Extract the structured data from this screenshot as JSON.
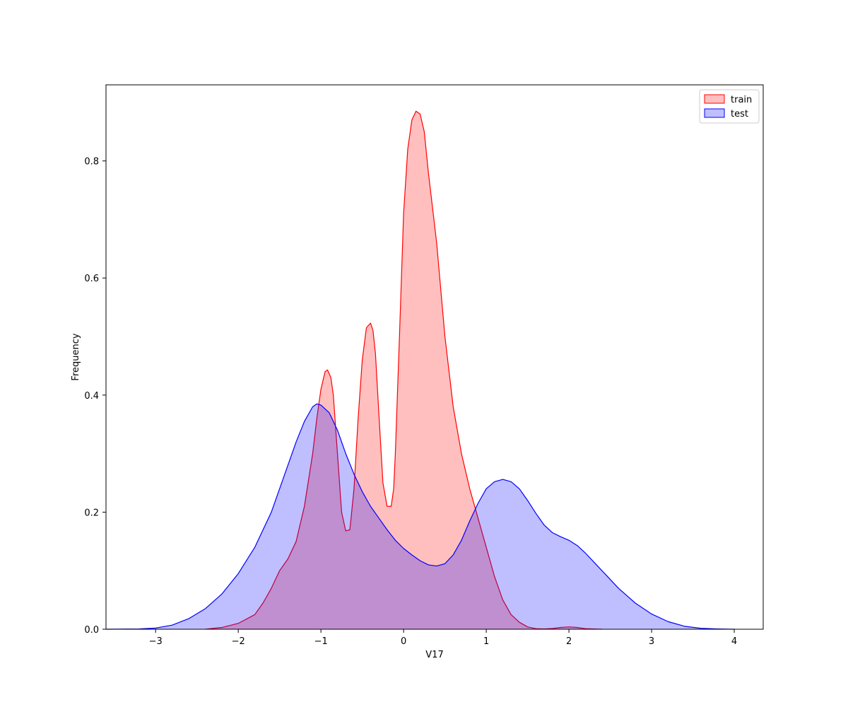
{
  "chart_data": {
    "type": "area",
    "xlabel": "V17",
    "ylabel": "Frequency",
    "xlim": [
      -3.6,
      4.35
    ],
    "ylim": [
      0,
      0.93
    ],
    "xticks": [
      -3,
      -2,
      -1,
      0,
      1,
      2,
      3,
      4
    ],
    "yticks": [
      0.0,
      0.2,
      0.4,
      0.6,
      0.8
    ],
    "xtick_labels": [
      "−3",
      "−2",
      "−1",
      "0",
      "1",
      "2",
      "3",
      "4"
    ],
    "ytick_labels": [
      "0.0",
      "0.2",
      "0.4",
      "0.6",
      "0.8"
    ],
    "grid": false,
    "legend_position": "top-right",
    "series": [
      {
        "name": "train",
        "line_color": "#ff0000",
        "fill_color": "#ff0000",
        "fill_opacity": 0.25,
        "x": [
          -2.4,
          -2.2,
          -2.0,
          -1.8,
          -1.7,
          -1.6,
          -1.5,
          -1.4,
          -1.3,
          -1.2,
          -1.1,
          -1.05,
          -1.0,
          -0.95,
          -0.92,
          -0.88,
          -0.85,
          -0.8,
          -0.75,
          -0.7,
          -0.65,
          -0.6,
          -0.55,
          -0.5,
          -0.45,
          -0.4,
          -0.37,
          -0.34,
          -0.3,
          -0.25,
          -0.2,
          -0.15,
          -0.12,
          -0.1,
          -0.05,
          0.0,
          0.05,
          0.1,
          0.15,
          0.2,
          0.25,
          0.3,
          0.4,
          0.5,
          0.6,
          0.7,
          0.8,
          0.9,
          1.0,
          1.1,
          1.2,
          1.3,
          1.4,
          1.5,
          1.6,
          1.7,
          1.8,
          1.9,
          2.0,
          2.1,
          2.2,
          2.4
        ],
        "y": [
          0.0,
          0.003,
          0.01,
          0.025,
          0.045,
          0.07,
          0.1,
          0.12,
          0.15,
          0.21,
          0.3,
          0.36,
          0.41,
          0.44,
          0.443,
          0.43,
          0.4,
          0.3,
          0.2,
          0.168,
          0.17,
          0.24,
          0.36,
          0.46,
          0.515,
          0.523,
          0.51,
          0.47,
          0.37,
          0.25,
          0.21,
          0.21,
          0.24,
          0.3,
          0.5,
          0.71,
          0.82,
          0.87,
          0.885,
          0.88,
          0.85,
          0.78,
          0.66,
          0.5,
          0.38,
          0.3,
          0.24,
          0.19,
          0.14,
          0.09,
          0.05,
          0.025,
          0.012,
          0.004,
          0.001,
          0.0005,
          0.0012,
          0.003,
          0.004,
          0.003,
          0.001,
          0.0
        ]
      },
      {
        "name": "test",
        "line_color": "#0000ff",
        "fill_color": "#0000ff",
        "fill_opacity": 0.25,
        "x": [
          -3.6,
          -3.2,
          -3.0,
          -2.8,
          -2.6,
          -2.4,
          -2.2,
          -2.0,
          -1.8,
          -1.6,
          -1.4,
          -1.3,
          -1.2,
          -1.1,
          -1.05,
          -1.0,
          -0.9,
          -0.8,
          -0.7,
          -0.6,
          -0.5,
          -0.4,
          -0.3,
          -0.2,
          -0.1,
          0.0,
          0.1,
          0.2,
          0.3,
          0.4,
          0.5,
          0.6,
          0.7,
          0.8,
          0.9,
          1.0,
          1.1,
          1.2,
          1.3,
          1.4,
          1.5,
          1.6,
          1.7,
          1.8,
          1.9,
          2.0,
          2.1,
          2.2,
          2.3,
          2.4,
          2.6,
          2.8,
          3.0,
          3.2,
          3.4,
          3.6,
          3.8,
          4.0
        ],
        "y": [
          0.0,
          0.0005,
          0.002,
          0.007,
          0.018,
          0.035,
          0.06,
          0.095,
          0.14,
          0.2,
          0.28,
          0.32,
          0.355,
          0.38,
          0.385,
          0.383,
          0.37,
          0.34,
          0.3,
          0.265,
          0.235,
          0.21,
          0.19,
          0.17,
          0.152,
          0.138,
          0.127,
          0.117,
          0.11,
          0.108,
          0.112,
          0.127,
          0.152,
          0.185,
          0.215,
          0.24,
          0.252,
          0.256,
          0.252,
          0.24,
          0.22,
          0.198,
          0.178,
          0.165,
          0.158,
          0.152,
          0.143,
          0.13,
          0.115,
          0.1,
          0.07,
          0.045,
          0.026,
          0.013,
          0.005,
          0.0015,
          0.0005,
          0.0
        ]
      }
    ]
  }
}
